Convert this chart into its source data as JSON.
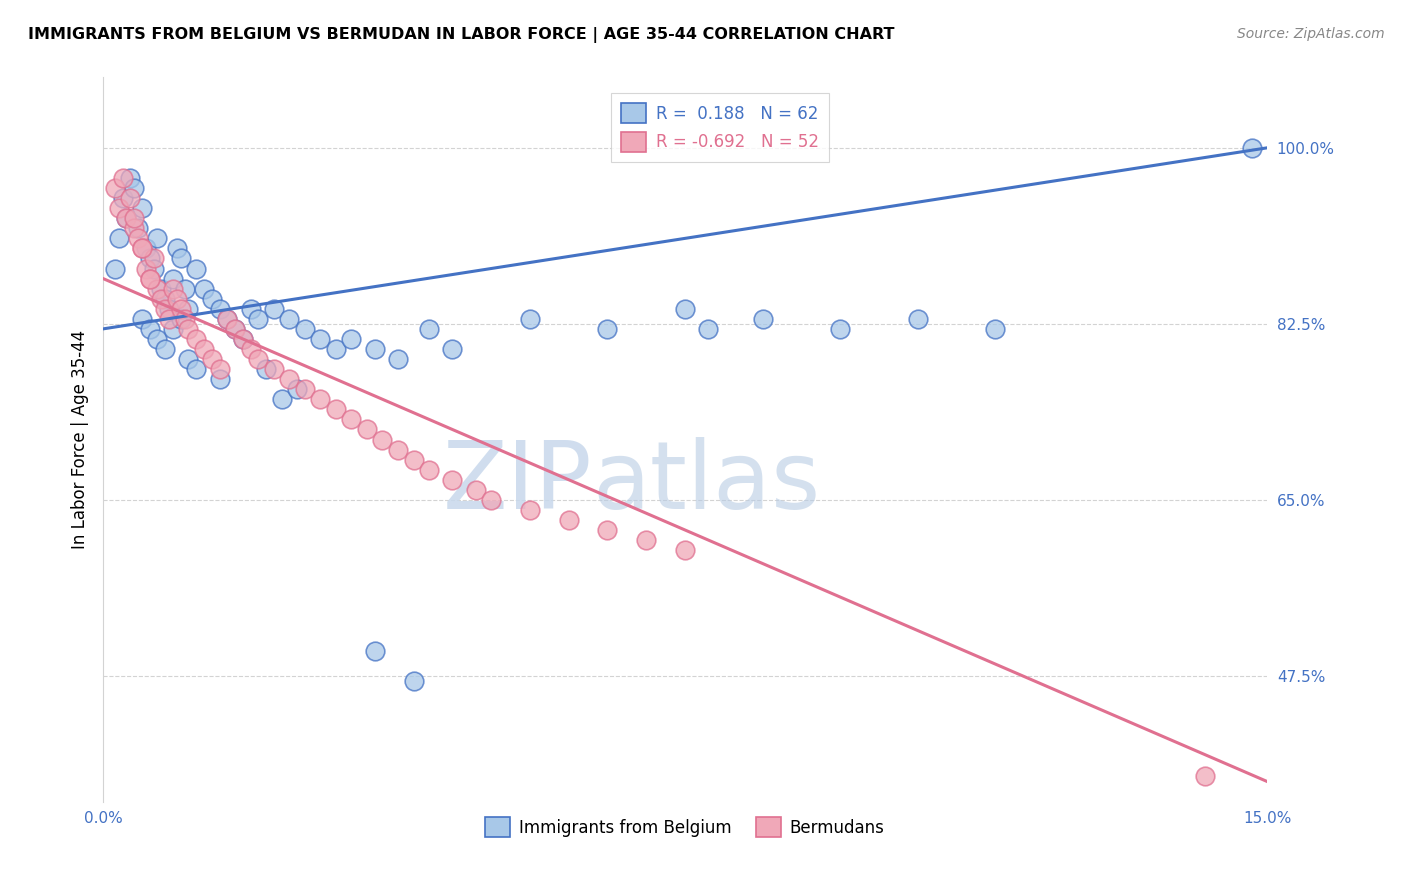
{
  "title": "IMMIGRANTS FROM BELGIUM VS BERMUDAN IN LABOR FORCE | AGE 35-44 CORRELATION CHART",
  "source": "Source: ZipAtlas.com",
  "ylabel": "In Labor Force | Age 35-44",
  "xlim": [
    0.0,
    15.0
  ],
  "ylim": [
    35.0,
    107.0
  ],
  "ytick_positions": [
    47.5,
    65.0,
    82.5,
    100.0
  ],
  "ytick_labels": [
    "47.5%",
    "65.0%",
    "82.5%",
    "100.0%"
  ],
  "blue_R": 0.188,
  "blue_N": 62,
  "pink_R": -0.692,
  "pink_N": 52,
  "blue_color": "#a8c8e8",
  "pink_color": "#f0a8b8",
  "blue_line_color": "#4472c4",
  "pink_line_color": "#e07090",
  "watermark_zip": "ZIP",
  "watermark_atlas": "atlas",
  "legend_blue_label": "Immigrants from Belgium",
  "legend_pink_label": "Bermudans",
  "blue_line_x0": 0.0,
  "blue_line_y0": 82.0,
  "blue_line_x1": 15.0,
  "blue_line_y1": 100.0,
  "pink_line_x0": 0.0,
  "pink_line_y0": 87.0,
  "pink_line_x1": 15.0,
  "pink_line_y1": 37.0,
  "blue_scatter_x": [
    0.15,
    0.2,
    0.25,
    0.3,
    0.35,
    0.4,
    0.45,
    0.5,
    0.55,
    0.6,
    0.65,
    0.7,
    0.75,
    0.8,
    0.85,
    0.9,
    0.95,
    1.0,
    1.05,
    1.1,
    1.2,
    1.3,
    1.4,
    1.5,
    1.6,
    1.7,
    1.8,
    1.9,
    2.0,
    2.2,
    2.4,
    2.6,
    2.8,
    3.0,
    3.2,
    3.5,
    3.8,
    4.5,
    5.5,
    6.5,
    7.5,
    7.8,
    8.5,
    9.5,
    10.5,
    11.5,
    2.1,
    2.3,
    0.5,
    0.6,
    0.7,
    0.8,
    0.9,
    1.0,
    1.1,
    1.2,
    1.5,
    2.5,
    3.5,
    4.0,
    4.2,
    14.8
  ],
  "blue_scatter_y": [
    88.0,
    91.0,
    95.0,
    93.0,
    97.0,
    96.0,
    92.0,
    94.0,
    90.0,
    89.0,
    88.0,
    91.0,
    86.0,
    85.0,
    84.0,
    87.0,
    90.0,
    89.0,
    86.0,
    84.0,
    88.0,
    86.0,
    85.0,
    84.0,
    83.0,
    82.0,
    81.0,
    84.0,
    83.0,
    84.0,
    83.0,
    82.0,
    81.0,
    80.0,
    81.0,
    80.0,
    79.0,
    80.0,
    83.0,
    82.0,
    84.0,
    82.0,
    83.0,
    82.0,
    83.0,
    82.0,
    78.0,
    75.0,
    83.0,
    82.0,
    81.0,
    80.0,
    82.0,
    83.0,
    79.0,
    78.0,
    77.0,
    76.0,
    50.0,
    47.0,
    82.0,
    100.0
  ],
  "pink_scatter_x": [
    0.15,
    0.2,
    0.25,
    0.3,
    0.35,
    0.4,
    0.45,
    0.5,
    0.55,
    0.6,
    0.65,
    0.7,
    0.75,
    0.8,
    0.85,
    0.9,
    0.95,
    1.0,
    1.05,
    1.1,
    1.2,
    1.3,
    1.4,
    1.5,
    1.6,
    1.7,
    1.8,
    1.9,
    2.0,
    2.2,
    2.4,
    2.6,
    2.8,
    3.0,
    3.2,
    3.4,
    3.6,
    3.8,
    4.0,
    4.2,
    4.5,
    4.8,
    5.0,
    5.5,
    6.0,
    6.5,
    7.0,
    7.5,
    0.4,
    0.5,
    0.6,
    14.2
  ],
  "pink_scatter_y": [
    96.0,
    94.0,
    97.0,
    93.0,
    95.0,
    92.0,
    91.0,
    90.0,
    88.0,
    87.0,
    89.0,
    86.0,
    85.0,
    84.0,
    83.0,
    86.0,
    85.0,
    84.0,
    83.0,
    82.0,
    81.0,
    80.0,
    79.0,
    78.0,
    83.0,
    82.0,
    81.0,
    80.0,
    79.0,
    78.0,
    77.0,
    76.0,
    75.0,
    74.0,
    73.0,
    72.0,
    71.0,
    70.0,
    69.0,
    68.0,
    67.0,
    66.0,
    65.0,
    64.0,
    63.0,
    62.0,
    61.0,
    60.0,
    93.0,
    90.0,
    87.0,
    37.5
  ]
}
